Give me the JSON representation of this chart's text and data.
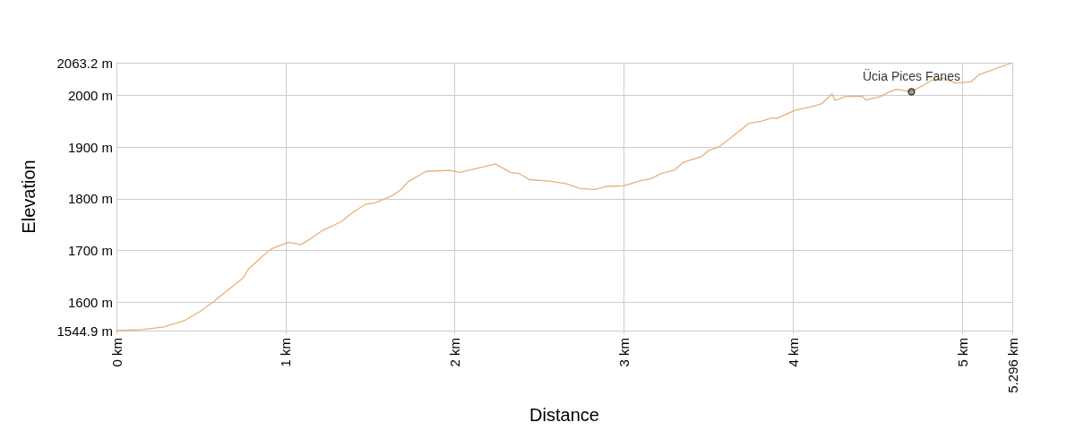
{
  "chart_data": {
    "type": "line",
    "xlabel": "Distance",
    "ylabel": "Elevation",
    "x": [
      0,
      0.15,
      0.28,
      0.4,
      0.5,
      0.57,
      0.65,
      0.75,
      0.78,
      0.84,
      0.91,
      0.96,
      1.02,
      1.09,
      1.14,
      1.21,
      1.24,
      1.33,
      1.39,
      1.47,
      1.53,
      1.63,
      1.68,
      1.72,
      1.83,
      1.97,
      2.03,
      2.24,
      2.33,
      2.38,
      2.44,
      2.56,
      2.66,
      2.74,
      2.83,
      2.9,
      3,
      3.09,
      3.16,
      3.22,
      3.3,
      3.35,
      3.46,
      3.5,
      3.56,
      3.62,
      3.74,
      3.81,
      3.88,
      3.9,
      4.01,
      4.12,
      4.17,
      4.23,
      4.25,
      4.31,
      4.41,
      4.43,
      4.52,
      4.57,
      4.61,
      4.7,
      4.82,
      4.89,
      4.96,
      5.05,
      5.1,
      5.296
    ],
    "series": [
      {
        "color": "#e8b07a",
        "values": [
          1544.9,
          1547,
          1552,
          1564,
          1583,
          1600,
          1621,
          1647,
          1664,
          1682,
          1702,
          1709,
          1716,
          1711,
          1721,
          1737,
          1742,
          1756,
          1772,
          1789,
          1792,
          1806,
          1817,
          1832,
          1853,
          1855,
          1851,
          1867,
          1851,
          1849,
          1837,
          1834,
          1829,
          1820,
          1818,
          1824,
          1825,
          1834,
          1839,
          1849,
          1856,
          1870,
          1882,
          1893,
          1900,
          1915,
          1946,
          1950,
          1957,
          1955,
          1971,
          1979,
          1984,
          2003,
          1990,
          1998,
          1998,
          1991,
          1998,
          2007,
          2012,
          2007,
          2029,
          2033,
          2024,
          2026,
          2040,
          2063.2
        ]
      }
    ],
    "xlim": [
      0,
      5.296
    ],
    "xticks": [
      {
        "value": 0,
        "label": "0 km"
      },
      {
        "value": 1,
        "label": "1 km"
      },
      {
        "value": 2,
        "label": "2 km"
      },
      {
        "value": 3,
        "label": "3 km"
      },
      {
        "value": 4,
        "label": "4 km"
      },
      {
        "value": 5,
        "label": "5 km"
      },
      {
        "value": 5.296,
        "label": "5.296 km"
      }
    ],
    "ylim": [
      1544.9,
      2063.2
    ],
    "yticks": [
      {
        "value": 1544.9,
        "label": "1544.9 m"
      },
      {
        "value": 1600,
        "label": "1600 m"
      },
      {
        "value": 1700,
        "label": "1700 m"
      },
      {
        "value": 1800,
        "label": "1800 m"
      },
      {
        "value": 1900,
        "label": "1900 m"
      },
      {
        "value": 2000,
        "label": "2000 m"
      },
      {
        "value": 2063.2,
        "label": "2063.2 m"
      }
    ],
    "annotations": [
      {
        "text": "Ücia Pices Fanes",
        "x": 4.7,
        "y": 2007
      }
    ],
    "grid": true,
    "marker": "none",
    "line_style": "solid"
  }
}
